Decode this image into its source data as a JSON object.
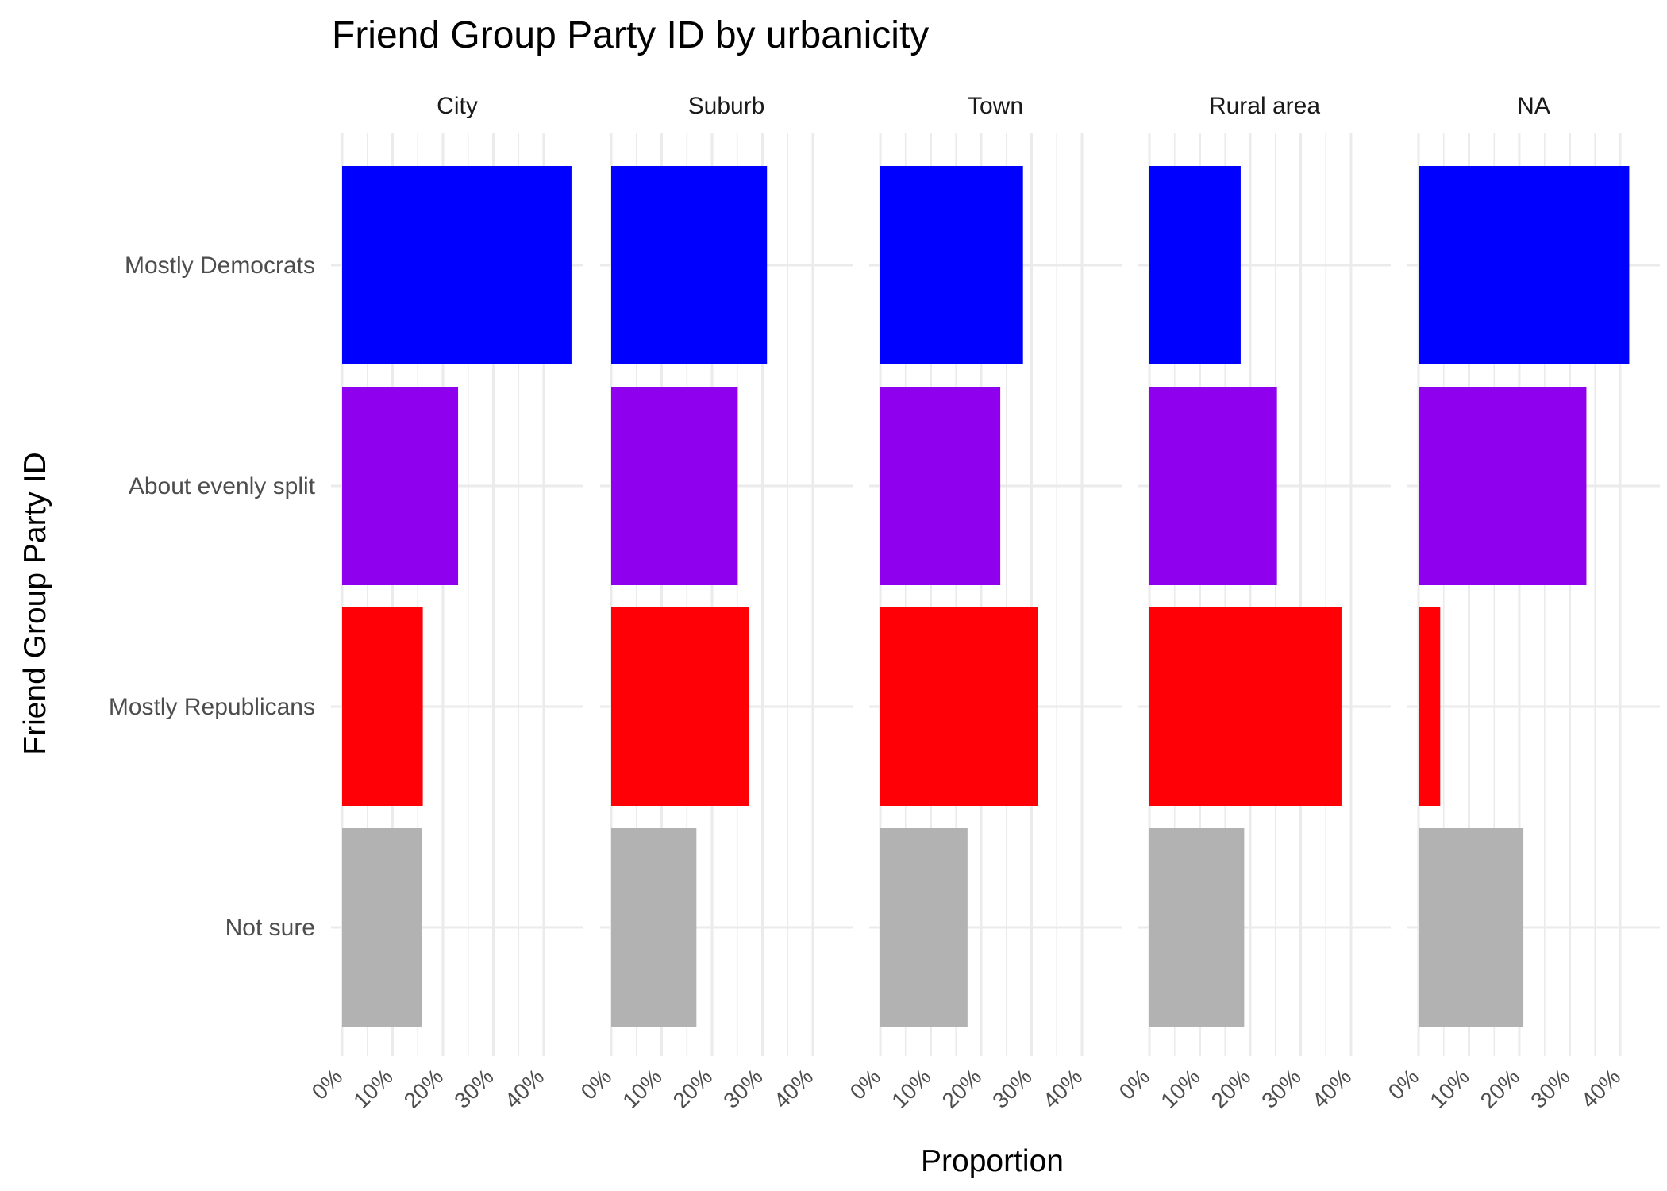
{
  "chart_data": {
    "type": "bar",
    "orientation": "horizontal",
    "title": "Friend Group Party ID by urbanicity",
    "xlabel": "Proportion",
    "ylabel": "Friend Group Party ID",
    "xlim": [
      0,
      45
    ],
    "x_ticks": [
      "0%",
      "10%",
      "20%",
      "30%",
      "40%"
    ],
    "x_tick_values": [
      0,
      10,
      20,
      30,
      40
    ],
    "grid": true,
    "legend": "none",
    "categories": [
      "Mostly Democrats",
      "About evenly split",
      "Mostly Republicans",
      "Not sure"
    ],
    "colors": {
      "Mostly Democrats": "#0000FF",
      "About evenly split": "#8F00EE",
      "Mostly Republicans": "#FF0007",
      "Not sure": "#B2B2B2"
    },
    "facets": [
      {
        "name": "City",
        "values": [
          45.5,
          23.0,
          16.0,
          15.9
        ]
      },
      {
        "name": "Suburb",
        "values": [
          30.9,
          25.1,
          27.3,
          16.9
        ]
      },
      {
        "name": "Town",
        "values": [
          28.3,
          23.8,
          31.2,
          17.3
        ]
      },
      {
        "name": "Rural area",
        "values": [
          18.1,
          25.3,
          38.1,
          18.8
        ]
      },
      {
        "name": "NA",
        "values": [
          41.8,
          33.3,
          4.3,
          20.8
        ]
      }
    ]
  }
}
